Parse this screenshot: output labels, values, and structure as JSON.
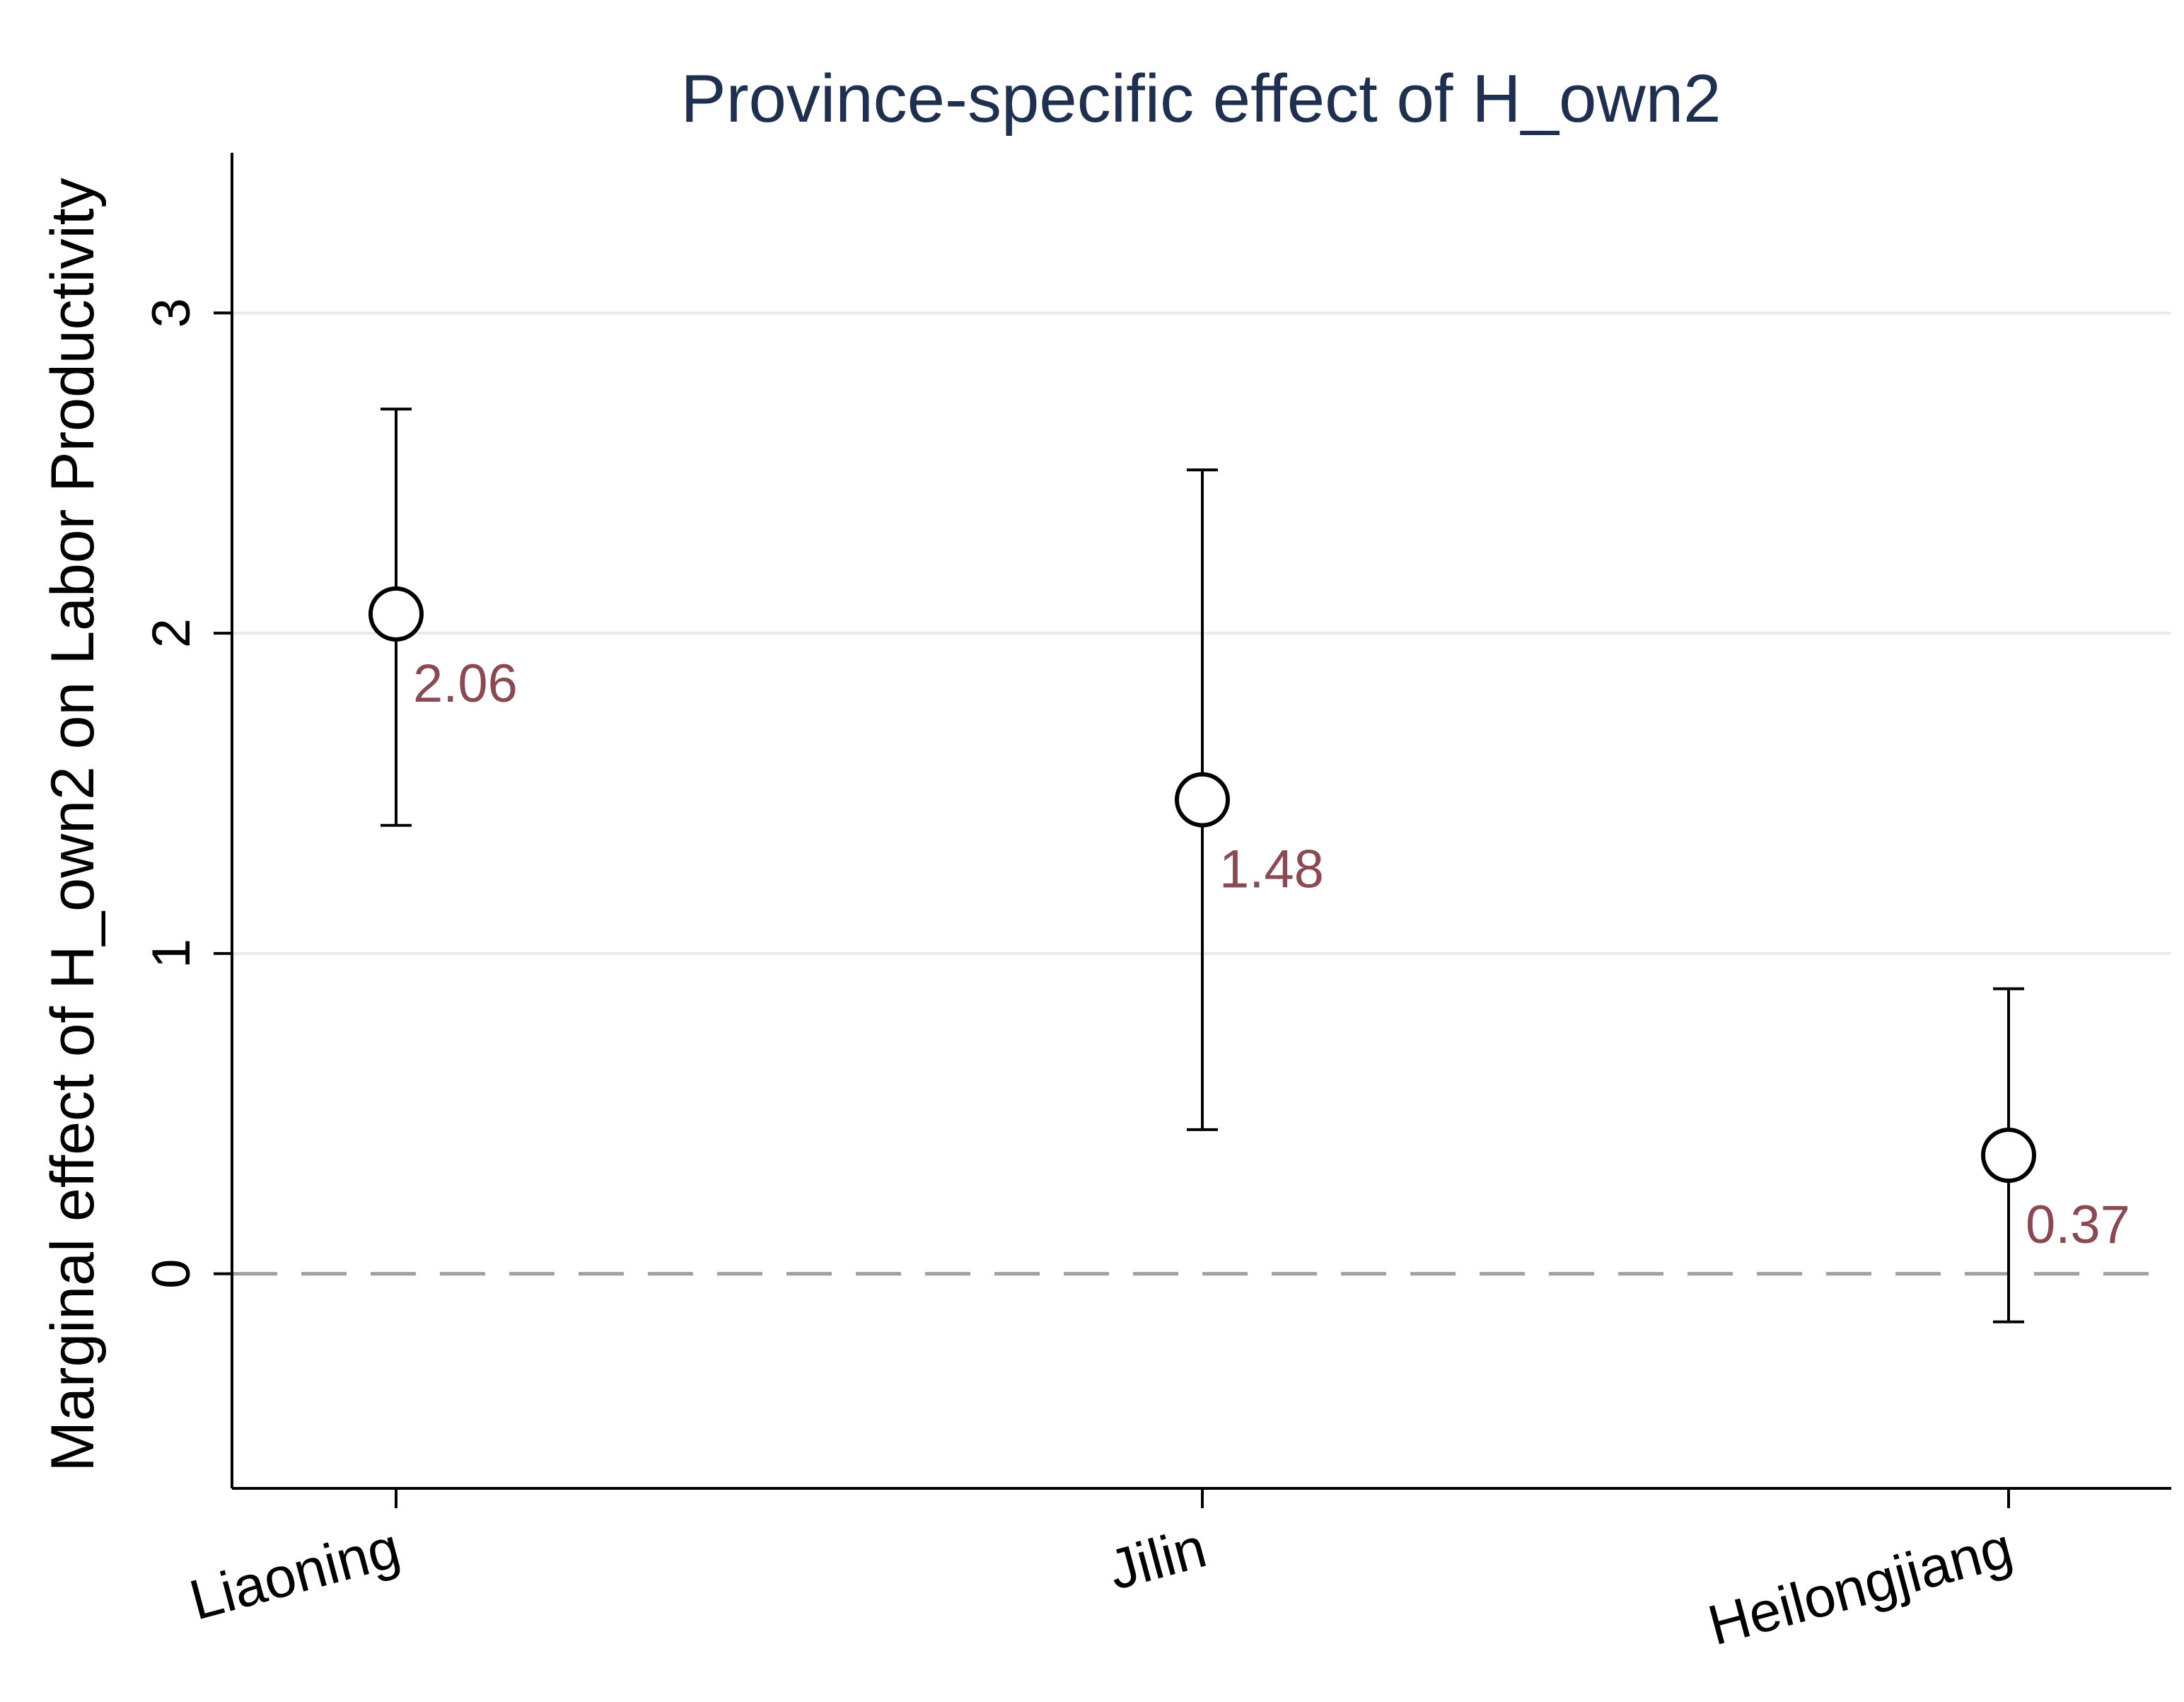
{
  "chart_data": {
    "type": "scatter",
    "title": "Province-specific effect of H_own2",
    "xlabel": "",
    "ylabel": "Marginal effect of H_own2 on Labor Productivity",
    "categories": [
      "Liaoning",
      "Jilin",
      "Heilongjiang"
    ],
    "series": [
      {
        "values": [
          2.06,
          1.48,
          0.37
        ],
        "ci_lower": [
          1.4,
          0.45,
          -0.15
        ],
        "ci_upper": [
          2.7,
          2.51,
          0.89
        ],
        "value_labels": [
          "2.06",
          "1.48",
          "0.37"
        ]
      }
    ],
    "ylim": [
      -0.67,
      3.5
    ],
    "yticks": [
      0,
      1,
      2,
      3
    ],
    "ytick_labels": [
      "0",
      "1",
      "2",
      "3"
    ],
    "reference_line": {
      "y": 0,
      "style": "dashed"
    },
    "grid": true,
    "legend": "none",
    "colors": {
      "marker_stroke": "#000000",
      "marker_fill": "#ffffff",
      "ci": "#000000",
      "value_label": "#8b4a52",
      "grid": "#eaeaea",
      "reference_line": "#a0a0a0",
      "title": "#1f2f4f"
    }
  }
}
